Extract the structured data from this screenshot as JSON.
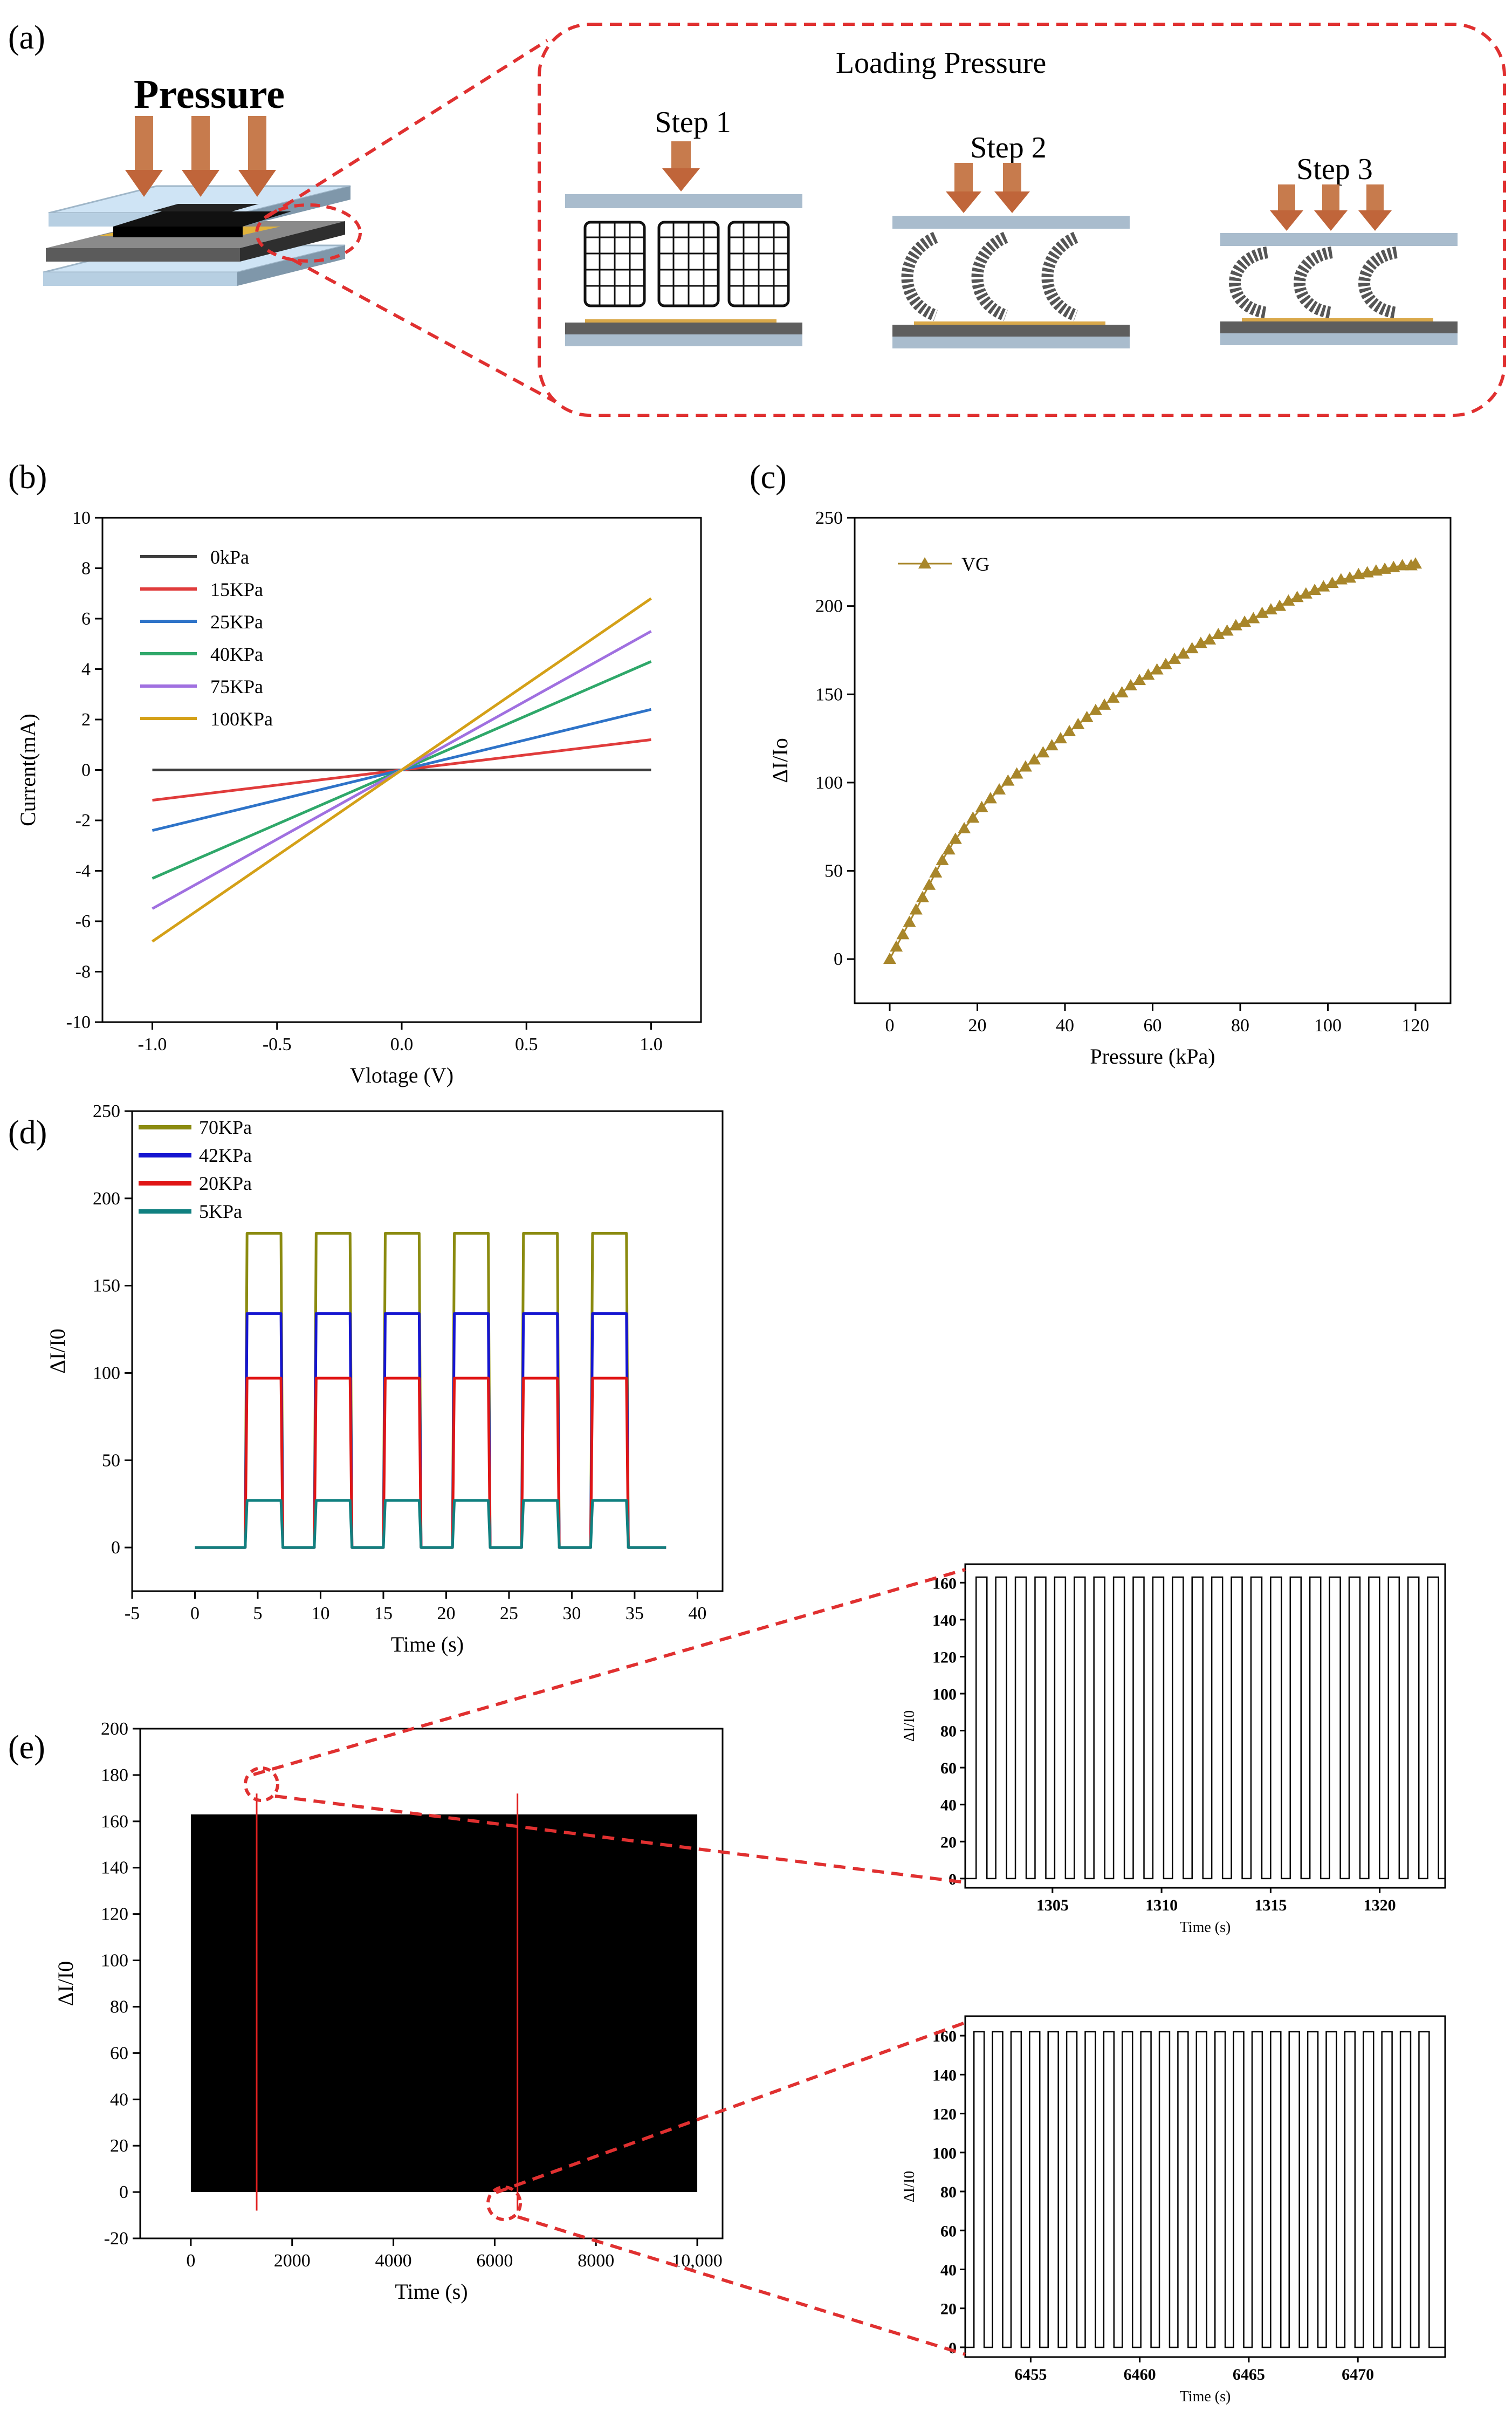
{
  "panels": {
    "a": {
      "label": "(a)",
      "pressure_label": "Pressure",
      "box_title": "Loading Pressure",
      "steps": [
        "Step 1",
        "Step 2",
        "Step 3"
      ]
    },
    "b": {
      "label": "(b)"
    },
    "c": {
      "label": "(c)"
    },
    "d": {
      "label": "(d)"
    },
    "e": {
      "label": "(e)"
    }
  },
  "chart_data": [
    {
      "id": "b",
      "type": "line",
      "title": "",
      "xlabel": "Vlotage (V)",
      "ylabel": "Current(mA)",
      "xlim": [
        -1.2,
        1.2
      ],
      "ylim": [
        -10,
        10
      ],
      "xticks": [
        -1.0,
        -0.5,
        0.0,
        0.5,
        1.0
      ],
      "xticklabels": [
        "-1.0",
        "-0.5",
        "0.0",
        "0.5",
        "1.0"
      ],
      "yticks": [
        -10,
        -8,
        -6,
        -4,
        -2,
        0,
        2,
        4,
        6,
        8,
        10
      ],
      "yticklabels": [
        "-10",
        "-8",
        "-6",
        "-4",
        "-2",
        "0",
        "2",
        "4",
        "6",
        "8",
        "10"
      ],
      "legend_position": "top-left",
      "series": [
        {
          "name": "0kPa",
          "color": "#3d3d3d",
          "x": [
            -1.0,
            1.0
          ],
          "values": [
            0.0,
            0.0
          ]
        },
        {
          "name": "15KPa",
          "color": "#e03c3c",
          "x": [
            -1.0,
            1.0
          ],
          "values": [
            -1.2,
            1.2
          ]
        },
        {
          "name": "25KPa",
          "color": "#2e73c8",
          "x": [
            -1.0,
            1.0
          ],
          "values": [
            -2.4,
            2.4
          ]
        },
        {
          "name": "40KPa",
          "color": "#2fa86a",
          "x": [
            -1.0,
            1.0
          ],
          "values": [
            -4.3,
            4.3
          ]
        },
        {
          "name": "75KPa",
          "color": "#a070e0",
          "x": [
            -1.0,
            1.0
          ],
          "values": [
            -5.5,
            5.5
          ]
        },
        {
          "name": "100KPa",
          "color": "#d4a017",
          "x": [
            -1.0,
            1.0
          ],
          "values": [
            -6.8,
            6.8
          ]
        }
      ]
    },
    {
      "id": "c",
      "type": "line",
      "title": "",
      "xlabel": "Pressure (kPa)",
      "ylabel": "ΔI/Io",
      "xlim": [
        -8,
        128
      ],
      "ylim": [
        -25,
        250
      ],
      "xticks": [
        0,
        20,
        40,
        60,
        80,
        100,
        120
      ],
      "xticklabels": [
        "0",
        "20",
        "40",
        "60",
        "80",
        "100",
        "120"
      ],
      "yticks": [
        0,
        50,
        100,
        150,
        200,
        250
      ],
      "yticklabels": [
        "0",
        "50",
        "100",
        "150",
        "200",
        "250"
      ],
      "legend_position": "top-left",
      "series": [
        {
          "name": "VG",
          "color": "#a8862a",
          "marker": "triangle",
          "x": [
            0,
            1.5,
            3,
            4.5,
            6,
            7.5,
            9,
            10.5,
            12,
            13.5,
            15,
            17,
            19,
            21,
            23,
            25,
            27,
            29,
            31,
            33,
            35,
            37,
            39,
            41,
            43,
            45,
            47,
            49,
            51,
            53,
            55,
            57,
            59,
            61,
            63,
            65,
            67,
            69,
            71,
            73,
            75,
            77,
            79,
            81,
            83,
            85,
            87,
            89,
            91,
            93,
            95,
            97,
            99,
            101,
            103,
            105,
            107,
            109,
            111,
            113,
            115,
            117,
            119,
            120
          ],
          "values": [
            0,
            7,
            14,
            21,
            28,
            35,
            42,
            49,
            56,
            62,
            68,
            74,
            80,
            86,
            91,
            96,
            101,
            105,
            109,
            113,
            117,
            121,
            125,
            129,
            133,
            137,
            141,
            144,
            148,
            151,
            155,
            158,
            161,
            164,
            167,
            170,
            173,
            176,
            179,
            181,
            184,
            186,
            189,
            191,
            193,
            196,
            198,
            200,
            203,
            205,
            207,
            209,
            211,
            213,
            215,
            216,
            218,
            219,
            220,
            221,
            222,
            223,
            223,
            224
          ]
        }
      ]
    },
    {
      "id": "d",
      "type": "line",
      "title": "",
      "xlabel": "Time (s)",
      "ylabel": "ΔI/I0",
      "xlim": [
        -5,
        42
      ],
      "ylim": [
        -25,
        250
      ],
      "xticks": [
        -5,
        0,
        5,
        10,
        15,
        20,
        25,
        30,
        35,
        40
      ],
      "xticklabels": [
        "-5",
        "0",
        "5",
        "10",
        "15",
        "20",
        "25",
        "30",
        "35",
        "40"
      ],
      "yticks": [
        0,
        50,
        100,
        150,
        200,
        250
      ],
      "yticklabels": [
        "0",
        "50",
        "100",
        "150",
        "200",
        "250"
      ],
      "legend_position": "top-left",
      "cycle": {
        "first_on": 4,
        "period": 5.5,
        "on_duration": 3,
        "count": 6,
        "t_start": 0,
        "t_end": 37.5
      },
      "series": [
        {
          "name": "70KPa",
          "color": "#8b8b10",
          "level": 180
        },
        {
          "name": "42KPa",
          "color": "#1515d0",
          "level": 134
        },
        {
          "name": "20KPa",
          "color": "#e01515",
          "level": 97
        },
        {
          "name": "5KPa",
          "color": "#108080",
          "level": 27
        }
      ]
    },
    {
      "id": "e_main",
      "type": "line",
      "title": "",
      "xlabel": "Time (s)",
      "ylabel": "ΔI/I0",
      "xlim": [
        -1000,
        10500
      ],
      "ylim": [
        -20,
        200
      ],
      "xticks": [
        0,
        2000,
        4000,
        6000,
        8000,
        10000
      ],
      "xticklabels": [
        "0",
        "2000",
        "4000",
        "6000",
        "8000",
        "10,000"
      ],
      "yticks": [
        -20,
        0,
        20,
        40,
        60,
        80,
        100,
        120,
        140,
        160,
        180,
        200
      ],
      "yticklabels": [
        "-20",
        "0",
        "20",
        "40",
        "60",
        "80",
        "100",
        "120",
        "140",
        "160",
        "180",
        "200"
      ],
      "series": [
        {
          "name": "cyclic response (dense)",
          "color": "#000000",
          "x": [
            0,
            10000
          ],
          "values": [
            0,
            163
          ]
        },
        {
          "name": "zoom marker 1",
          "color": "#e02020",
          "x": [
            1300,
            1300
          ],
          "values": [
            -8,
            172
          ]
        },
        {
          "name": "zoom marker 2",
          "color": "#e02020",
          "x": [
            6450,
            6450
          ],
          "values": [
            -8,
            172
          ]
        }
      ]
    },
    {
      "id": "e_zoom1",
      "type": "line",
      "title": "",
      "xlabel": "Time (s)",
      "ylabel": "ΔI/I0",
      "xlim": [
        1301,
        1323
      ],
      "ylim": [
        -5,
        170
      ],
      "xticks": [
        1305,
        1310,
        1315,
        1320
      ],
      "xticklabels": [
        "1305",
        "1310",
        "1315",
        "1320"
      ],
      "yticks": [
        0,
        20,
        40,
        60,
        80,
        100,
        120,
        140,
        160
      ],
      "yticklabels": [
        "0",
        "20",
        "40",
        "60",
        "80",
        "100",
        "120",
        "140",
        "160"
      ],
      "pulses": {
        "start": 1301.5,
        "period": 0.9,
        "duty": 0.55,
        "level": 163,
        "count": 24
      },
      "series": [
        {
          "name": "pulses",
          "color": "#000000"
        }
      ]
    },
    {
      "id": "e_zoom2",
      "type": "line",
      "title": "",
      "xlabel": "Time (s)",
      "ylabel": "ΔI/I0",
      "xlim": [
        6452,
        6474
      ],
      "ylim": [
        -5,
        170
      ],
      "xticks": [
        6455,
        6460,
        6465,
        6470
      ],
      "xticklabels": [
        "6455",
        "6460",
        "6465",
        "6470"
      ],
      "yticks": [
        0,
        20,
        40,
        60,
        80,
        100,
        120,
        140,
        160
      ],
      "yticklabels": [
        "0",
        "20",
        "40",
        "60",
        "80",
        "100",
        "120",
        "140",
        "160"
      ],
      "pulses": {
        "start": 6452.4,
        "period": 0.85,
        "duty": 0.55,
        "level": 162,
        "count": 25
      },
      "series": [
        {
          "name": "pulses",
          "color": "#000000"
        }
      ]
    }
  ]
}
